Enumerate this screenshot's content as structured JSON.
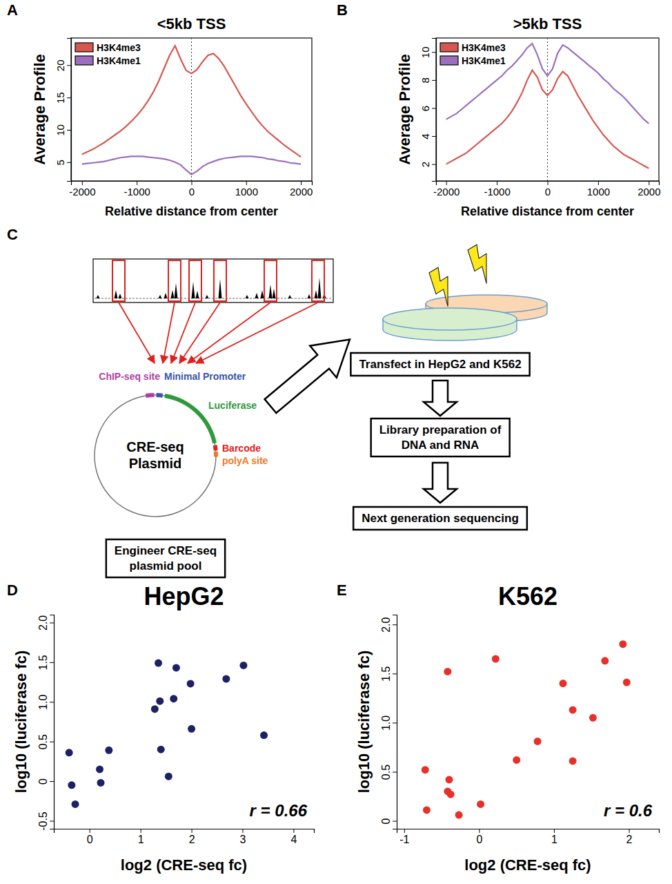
{
  "chart_data": [
    {
      "panel": "A",
      "type": "line",
      "title": "<5kb TSS",
      "x_label": "Relative distance from center",
      "y_label": "Average Profile",
      "x": [
        -2000,
        -1900,
        -1800,
        -1700,
        -1600,
        -1500,
        -1400,
        -1300,
        -1200,
        -1100,
        -1000,
        -900,
        -800,
        -700,
        -600,
        -500,
        -400,
        -300,
        -200,
        -100,
        0,
        100,
        200,
        300,
        400,
        500,
        600,
        700,
        800,
        900,
        1000,
        1100,
        1200,
        1300,
        1400,
        1500,
        1600,
        1700,
        1800,
        1900,
        2000
      ],
      "series": [
        {
          "name": "H3K4me3",
          "color": "#d6574f",
          "values": [
            6.2,
            6.6,
            7.0,
            7.5,
            8.0,
            8.6,
            9.2,
            9.8,
            10.5,
            11.3,
            12.2,
            13.2,
            14.4,
            15.8,
            17.5,
            19.5,
            21.5,
            23.0,
            21.0,
            19.2,
            18.7,
            19.3,
            20.5,
            21.5,
            21.8,
            21.0,
            19.8,
            18.3,
            16.8,
            15.3,
            14.0,
            12.8,
            11.6,
            10.6,
            9.7,
            9.0,
            8.3,
            7.6,
            7.0,
            6.4,
            5.8
          ]
        },
        {
          "name": "H3K4me1",
          "color": "#9b6fbf",
          "values": [
            4.7,
            4.8,
            4.9,
            5.0,
            5.1,
            5.3,
            5.5,
            5.7,
            5.8,
            5.9,
            5.9,
            5.9,
            5.8,
            5.7,
            5.6,
            5.5,
            5.3,
            5.0,
            4.6,
            3.8,
            3.1,
            3.6,
            4.3,
            4.8,
            5.1,
            5.4,
            5.6,
            5.7,
            5.8,
            5.9,
            5.9,
            5.9,
            5.8,
            5.7,
            5.5,
            5.4,
            5.2,
            5.1,
            4.9,
            4.8,
            4.7
          ]
        }
      ],
      "xlim": [
        -2200,
        2200
      ],
      "xticks": [
        -2000,
        -1000,
        0,
        1000,
        2000
      ],
      "ylim": [
        2.1,
        24.2
      ],
      "yticks": [
        5,
        10,
        15,
        20
      ],
      "vline": 0,
      "legend": "top-left"
    },
    {
      "panel": "B",
      "type": "line",
      "title": ">5kb TSS",
      "x_label": "Relative distance from center",
      "y_label": "Average Profile",
      "x": [
        -2000,
        -1900,
        -1800,
        -1700,
        -1600,
        -1500,
        -1400,
        -1300,
        -1200,
        -1100,
        -1000,
        -900,
        -800,
        -700,
        -600,
        -500,
        -400,
        -300,
        -200,
        -100,
        0,
        100,
        200,
        300,
        400,
        500,
        600,
        700,
        800,
        900,
        1000,
        1100,
        1200,
        1300,
        1400,
        1500,
        1600,
        1700,
        1800,
        1900,
        2000
      ],
      "series": [
        {
          "name": "H3K4me3",
          "color": "#d6574f",
          "values": [
            2.0,
            2.2,
            2.4,
            2.6,
            2.8,
            3.1,
            3.4,
            3.7,
            4.0,
            4.3,
            4.6,
            4.9,
            5.3,
            5.8,
            6.4,
            7.1,
            8.0,
            8.7,
            8.2,
            7.3,
            6.9,
            7.3,
            8.1,
            8.6,
            8.3,
            7.6,
            6.9,
            6.3,
            5.7,
            5.1,
            4.6,
            4.1,
            3.7,
            3.3,
            3.0,
            2.7,
            2.5,
            2.3,
            2.1,
            1.9,
            1.7
          ]
        },
        {
          "name": "H3K4me1",
          "color": "#9b6fbf",
          "values": [
            5.2,
            5.4,
            5.6,
            5.9,
            6.2,
            6.5,
            6.8,
            7.1,
            7.4,
            7.7,
            8.0,
            8.3,
            8.7,
            9.0,
            9.4,
            9.8,
            10.3,
            10.6,
            9.8,
            8.8,
            8.3,
            8.8,
            9.9,
            10.5,
            10.3,
            10.0,
            9.7,
            9.4,
            9.1,
            8.8,
            8.5,
            8.1,
            7.8,
            7.4,
            7.1,
            6.8,
            6.4,
            6.0,
            5.6,
            5.2,
            4.9
          ]
        }
      ],
      "xlim": [
        -2200,
        2200
      ],
      "xticks": [
        -2000,
        -1000,
        0,
        1000,
        2000
      ],
      "ylim": [
        0.8,
        11.0
      ],
      "yticks": [
        2,
        4,
        6,
        8,
        10
      ],
      "vline": 0,
      "legend": "top-left"
    },
    {
      "panel": "D",
      "type": "scatter",
      "title": "HepG2",
      "x_label": "log2 (CRE-seq fc)",
      "y_label": "log10 (luciferase fc)",
      "annotation": "r = 0.66",
      "color": "#1c2166",
      "x": [
        -0.4,
        -0.35,
        -0.28,
        0.2,
        0.22,
        0.38,
        1.28,
        1.35,
        1.38,
        1.4,
        1.55,
        1.65,
        1.7,
        2.0,
        1.98,
        2.68,
        3.02,
        3.42
      ],
      "values": [
        0.36,
        -0.05,
        -0.29,
        0.15,
        -0.02,
        0.39,
        0.91,
        1.49,
        1.01,
        0.4,
        0.06,
        1.04,
        1.43,
        0.66,
        1.23,
        1.29,
        1.46,
        0.58
      ],
      "xlim": [
        -0.7,
        4.4
      ],
      "xticks": [
        0,
        1,
        2,
        3,
        4
      ],
      "ylim": [
        -0.6,
        2.1
      ],
      "yticks": [
        -0.5,
        0,
        0.5,
        {
          "value": 1,
          "label": "1.0"
        },
        1.5,
        {
          "value": 2,
          "label": "2.0"
        }
      ]
    },
    {
      "panel": "E",
      "type": "scatter",
      "title": "K562",
      "x_label": "log2 (CRE-seq fc)",
      "y_label": "log10 (luciferase fc)",
      "annotation": "r = 0.6",
      "color": "#e8302a",
      "x": [
        -0.72,
        -0.7,
        -0.42,
        -0.4,
        -0.42,
        -0.38,
        -0.27,
        0.02,
        0.22,
        0.5,
        0.78,
        1.12,
        1.25,
        1.25,
        1.52,
        1.68,
        1.92,
        1.97
      ],
      "values": [
        0.52,
        0.11,
        1.52,
        0.42,
        0.3,
        0.27,
        0.06,
        0.17,
        1.65,
        0.62,
        0.81,
        1.4,
        0.61,
        1.13,
        1.05,
        1.63,
        1.8,
        1.41
      ],
      "xlim": [
        -1.1,
        2.4
      ],
      "xticks": [
        -1,
        0,
        1,
        2
      ],
      "ylim": [
        -0.08,
        2.1
      ],
      "yticks": [
        0,
        0.5,
        {
          "value": 1,
          "label": "1.0"
        },
        1.5,
        {
          "value": 2,
          "label": "2.0"
        }
      ]
    }
  ],
  "diagram": {
    "panel": "C",
    "plasmid": {
      "lines": [
        "CRE-seq",
        "Plasmid"
      ],
      "chip_site": "ChIP-seq site",
      "promoter": "Minimal Promoter",
      "gene": "Luciferase",
      "barcode": "Barcode",
      "polya": "polyA site"
    },
    "steps": [
      {
        "lines": [
          "Engineer CRE-seq",
          "plasmid pool"
        ]
      },
      {
        "lines": [
          "Transfect in HepG2 and K562"
        ]
      },
      {
        "lines": [
          "Library preparation of",
          "DNA and RNA"
        ]
      },
      {
        "lines": [
          "Next generation sequencing"
        ]
      }
    ]
  }
}
